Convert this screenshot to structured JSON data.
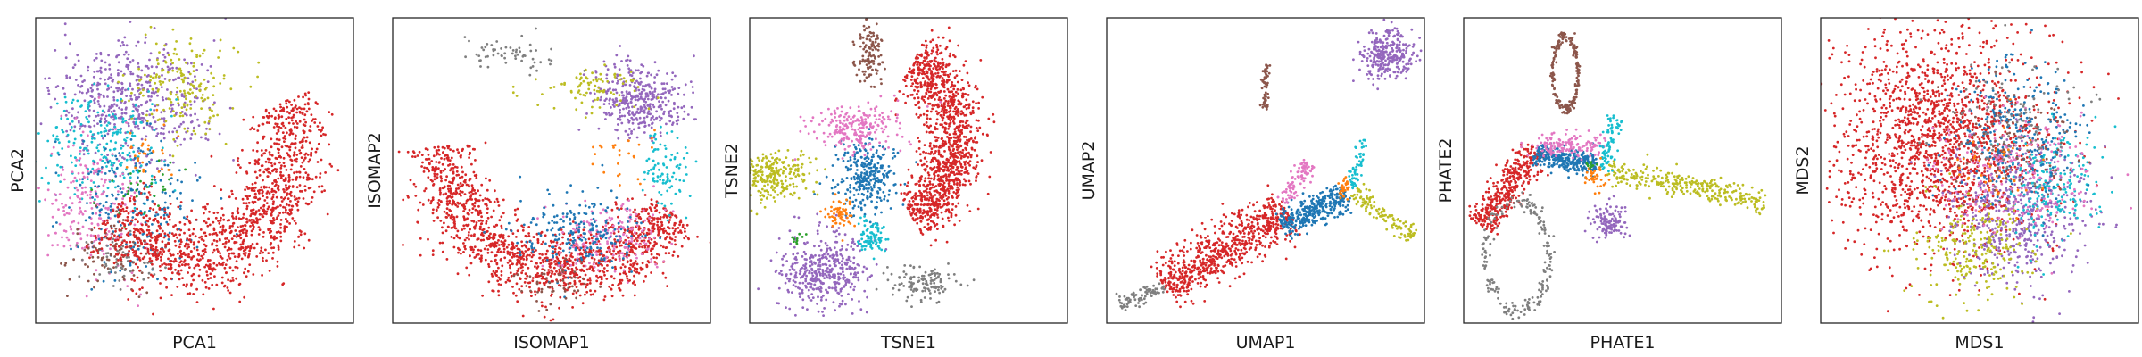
{
  "figure": {
    "panel_count": 6
  },
  "palette": {
    "blue": "#1f77b4",
    "orange": "#ff7f0e",
    "green": "#2ca02c",
    "red": "#d62728",
    "purple": "#9467bd",
    "brown": "#8c564b",
    "pink": "#e377c2",
    "gray": "#7f7f7f",
    "olive": "#bcbd22",
    "cyan": "#17becf"
  },
  "chart_data": [
    {
      "type": "scatter",
      "xlabel": "PCA1",
      "ylabel": "PCA2",
      "ticks": "none",
      "xlim": [
        0,
        1
      ],
      "ylim": [
        0,
        1
      ],
      "clusters": [
        {
          "color": "purple",
          "center": [
            0.3,
            0.72
          ],
          "spread": [
            0.12,
            0.1
          ],
          "n": 520
        },
        {
          "color": "olive",
          "center": [
            0.45,
            0.78
          ],
          "spread": [
            0.08,
            0.08
          ],
          "n": 180
        },
        {
          "color": "cyan",
          "center": [
            0.22,
            0.58
          ],
          "spread": [
            0.09,
            0.09
          ],
          "n": 220
        },
        {
          "color": "pink",
          "center": [
            0.18,
            0.4
          ],
          "spread": [
            0.07,
            0.12
          ],
          "n": 220
        },
        {
          "color": "blue",
          "center": [
            0.3,
            0.4
          ],
          "spread": [
            0.1,
            0.12
          ],
          "n": 220
        },
        {
          "color": "brown",
          "center": [
            0.24,
            0.22
          ],
          "spread": [
            0.07,
            0.07
          ],
          "n": 90
        },
        {
          "color": "gray",
          "center": [
            0.28,
            0.2
          ],
          "spread": [
            0.07,
            0.05
          ],
          "n": 60
        },
        {
          "color": "green",
          "center": [
            0.33,
            0.45
          ],
          "spread": [
            0.05,
            0.05
          ],
          "n": 30
        },
        {
          "color": "orange",
          "center": [
            0.35,
            0.55
          ],
          "spread": [
            0.05,
            0.05
          ],
          "n": 30
        },
        {
          "color": "red",
          "shape": "arc",
          "center": [
            0.48,
            0.6
          ],
          "radius": [
            0.33,
            0.38
          ],
          "angles": [
            -140,
            20
          ],
          "width": 0.07,
          "n": 1300
        }
      ]
    },
    {
      "type": "scatter",
      "xlabel": "ISOMAP1",
      "ylabel": "ISOMAP2",
      "ticks": "none",
      "xlim": [
        0,
        1
      ],
      "ylim": [
        0,
        1
      ],
      "clusters": [
        {
          "color": "red",
          "shape": "arc",
          "center": [
            0.55,
            0.62
          ],
          "radius": [
            0.4,
            0.45
          ],
          "angles": [
            -175,
            -35
          ],
          "width": 0.06,
          "n": 1400
        },
        {
          "color": "purple",
          "center": [
            0.78,
            0.73
          ],
          "spread": [
            0.07,
            0.06
          ],
          "n": 380
        },
        {
          "color": "olive",
          "center": [
            0.63,
            0.77
          ],
          "spread": [
            0.08,
            0.04
          ],
          "n": 90
        },
        {
          "color": "cyan",
          "center": [
            0.86,
            0.5
          ],
          "spread": [
            0.04,
            0.06
          ],
          "n": 90
        },
        {
          "color": "pink",
          "center": [
            0.68,
            0.28
          ],
          "spread": [
            0.09,
            0.06
          ],
          "n": 180
        },
        {
          "color": "blue",
          "center": [
            0.58,
            0.3
          ],
          "spread": [
            0.1,
            0.06
          ],
          "n": 220
        },
        {
          "color": "gray",
          "center": [
            0.38,
            0.88
          ],
          "spread": [
            0.08,
            0.03
          ],
          "n": 60
        },
        {
          "color": "brown",
          "center": [
            0.5,
            0.13
          ],
          "spread": [
            0.05,
            0.03
          ],
          "n": 50
        },
        {
          "color": "orange",
          "center": [
            0.72,
            0.55
          ],
          "spread": [
            0.05,
            0.05
          ],
          "n": 25
        }
      ]
    },
    {
      "type": "scatter",
      "xlabel": "TSNE1",
      "ylabel": "TSNE2",
      "ticks": "none",
      "xlim": [
        0,
        1
      ],
      "ylim": [
        0,
        1
      ],
      "clusters": [
        {
          "color": "red",
          "shape": "arc",
          "center": [
            0.38,
            0.6
          ],
          "radius": [
            0.27,
            0.3
          ],
          "angles": [
            -60,
            60
          ],
          "width": 0.05,
          "n": 1200
        },
        {
          "color": "blue",
          "center": [
            0.37,
            0.48
          ],
          "spread": [
            0.05,
            0.06
          ],
          "n": 300
        },
        {
          "color": "pink",
          "center": [
            0.33,
            0.64
          ],
          "spread": [
            0.07,
            0.04
          ],
          "n": 220
        },
        {
          "color": "purple",
          "center": [
            0.22,
            0.17
          ],
          "spread": [
            0.07,
            0.06
          ],
          "n": 420
        },
        {
          "color": "olive",
          "center": [
            0.07,
            0.48
          ],
          "spread": [
            0.06,
            0.04
          ],
          "n": 260
        },
        {
          "color": "brown",
          "center": [
            0.38,
            0.88
          ],
          "spread": [
            0.02,
            0.05
          ],
          "n": 120
        },
        {
          "color": "gray",
          "center": [
            0.55,
            0.13
          ],
          "spread": [
            0.05,
            0.03
          ],
          "n": 120
        },
        {
          "color": "cyan",
          "center": [
            0.38,
            0.28
          ],
          "spread": [
            0.02,
            0.03
          ],
          "n": 90
        },
        {
          "color": "orange",
          "center": [
            0.28,
            0.36
          ],
          "spread": [
            0.02,
            0.02
          ],
          "n": 60
        },
        {
          "color": "green",
          "center": [
            0.15,
            0.28
          ],
          "spread": [
            0.01,
            0.01
          ],
          "n": 10
        }
      ]
    },
    {
      "type": "scatter",
      "xlabel": "UMAP1",
      "ylabel": "UMAP2",
      "ticks": "none",
      "xlim": [
        0,
        1
      ],
      "ylim": [
        0,
        1
      ],
      "clusters": [
        {
          "color": "red",
          "shape": "line",
          "from": [
            0.18,
            0.12
          ],
          "to": [
            0.57,
            0.37
          ],
          "width": 0.04,
          "n": 700
        },
        {
          "color": "blue",
          "shape": "line",
          "from": [
            0.55,
            0.32
          ],
          "to": [
            0.76,
            0.42
          ],
          "width": 0.025,
          "n": 320
        },
        {
          "color": "gray",
          "shape": "line",
          "from": [
            0.04,
            0.06
          ],
          "to": [
            0.18,
            0.12
          ],
          "width": 0.012,
          "n": 80
        },
        {
          "color": "pink",
          "shape": "line",
          "from": [
            0.55,
            0.4
          ],
          "to": [
            0.64,
            0.52
          ],
          "width": 0.015,
          "n": 90
        },
        {
          "color": "olive",
          "shape": "line",
          "from": [
            0.78,
            0.43
          ],
          "to": [
            0.96,
            0.28
          ],
          "width": 0.015,
          "n": 120
        },
        {
          "color": "cyan",
          "shape": "line",
          "from": [
            0.77,
            0.44
          ],
          "to": [
            0.81,
            0.6
          ],
          "width": 0.01,
          "n": 60
        },
        {
          "color": "orange",
          "center": [
            0.75,
            0.44
          ],
          "spread": [
            0.01,
            0.02
          ],
          "n": 30
        },
        {
          "color": "purple",
          "center": [
            0.88,
            0.88
          ],
          "spread": [
            0.04,
            0.04
          ],
          "n": 300
        },
        {
          "color": "brown",
          "shape": "line",
          "from": [
            0.5,
            0.7
          ],
          "to": [
            0.5,
            0.85
          ],
          "width": 0.006,
          "n": 60
        }
      ]
    },
    {
      "type": "scatter",
      "xlabel": "PHATE1",
      "ylabel": "PHATE2",
      "ticks": "none",
      "xlim": [
        0,
        1
      ],
      "ylim": [
        0,
        1
      ],
      "clusters": [
        {
          "color": "red",
          "shape": "line",
          "from": [
            0.05,
            0.32
          ],
          "to": [
            0.23,
            0.57
          ],
          "width": 0.025,
          "n": 400
        },
        {
          "color": "blue",
          "shape": "line",
          "from": [
            0.22,
            0.55
          ],
          "to": [
            0.42,
            0.52
          ],
          "width": 0.02,
          "n": 300
        },
        {
          "color": "pink",
          "center": [
            0.32,
            0.58
          ],
          "spread": [
            0.06,
            0.02
          ],
          "n": 150
        },
        {
          "color": "olive",
          "shape": "line",
          "from": [
            0.45,
            0.5
          ],
          "to": [
            0.95,
            0.4
          ],
          "width": 0.02,
          "n": 300
        },
        {
          "color": "brown",
          "shape": "loop",
          "center": [
            0.32,
            0.82
          ],
          "spread": [
            0.04,
            0.12
          ],
          "n": 200
        },
        {
          "color": "gray",
          "shape": "loop",
          "center": [
            0.17,
            0.22
          ],
          "spread": [
            0.1,
            0.18
          ],
          "n": 200
        },
        {
          "color": "cyan",
          "shape": "line",
          "from": [
            0.44,
            0.5
          ],
          "to": [
            0.48,
            0.68
          ],
          "width": 0.012,
          "n": 80
        },
        {
          "color": "purple",
          "center": [
            0.46,
            0.33
          ],
          "spread": [
            0.03,
            0.03
          ],
          "n": 120
        },
        {
          "color": "orange",
          "center": [
            0.42,
            0.48
          ],
          "spread": [
            0.02,
            0.02
          ],
          "n": 40
        },
        {
          "color": "green",
          "center": [
            0.4,
            0.52
          ],
          "spread": [
            0.01,
            0.01
          ],
          "n": 10
        }
      ]
    },
    {
      "type": "scatter",
      "xlabel": "MDS1",
      "ylabel": "MDS2",
      "ticks": "none",
      "xlim": [
        0,
        1
      ],
      "ylim": [
        0,
        1
      ],
      "clusters": [
        {
          "color": "red",
          "center": [
            0.38,
            0.6
          ],
          "spread": [
            0.17,
            0.18
          ],
          "n": 1700
        },
        {
          "color": "purple",
          "center": [
            0.63,
            0.35
          ],
          "spread": [
            0.11,
            0.11
          ],
          "n": 520
        },
        {
          "color": "olive",
          "center": [
            0.48,
            0.25
          ],
          "spread": [
            0.1,
            0.08
          ],
          "n": 240
        },
        {
          "color": "cyan",
          "center": [
            0.73,
            0.45
          ],
          "spread": [
            0.07,
            0.1
          ],
          "n": 200
        },
        {
          "color": "blue",
          "center": [
            0.62,
            0.62
          ],
          "spread": [
            0.1,
            0.12
          ],
          "n": 280
        },
        {
          "color": "pink",
          "center": [
            0.6,
            0.48
          ],
          "spread": [
            0.14,
            0.12
          ],
          "n": 220
        },
        {
          "color": "brown",
          "center": [
            0.62,
            0.58
          ],
          "spread": [
            0.1,
            0.1
          ],
          "n": 100
        },
        {
          "color": "gray",
          "center": [
            0.6,
            0.68
          ],
          "spread": [
            0.1,
            0.1
          ],
          "n": 100
        },
        {
          "color": "orange",
          "center": [
            0.55,
            0.5
          ],
          "spread": [
            0.08,
            0.08
          ],
          "n": 40
        }
      ]
    }
  ]
}
